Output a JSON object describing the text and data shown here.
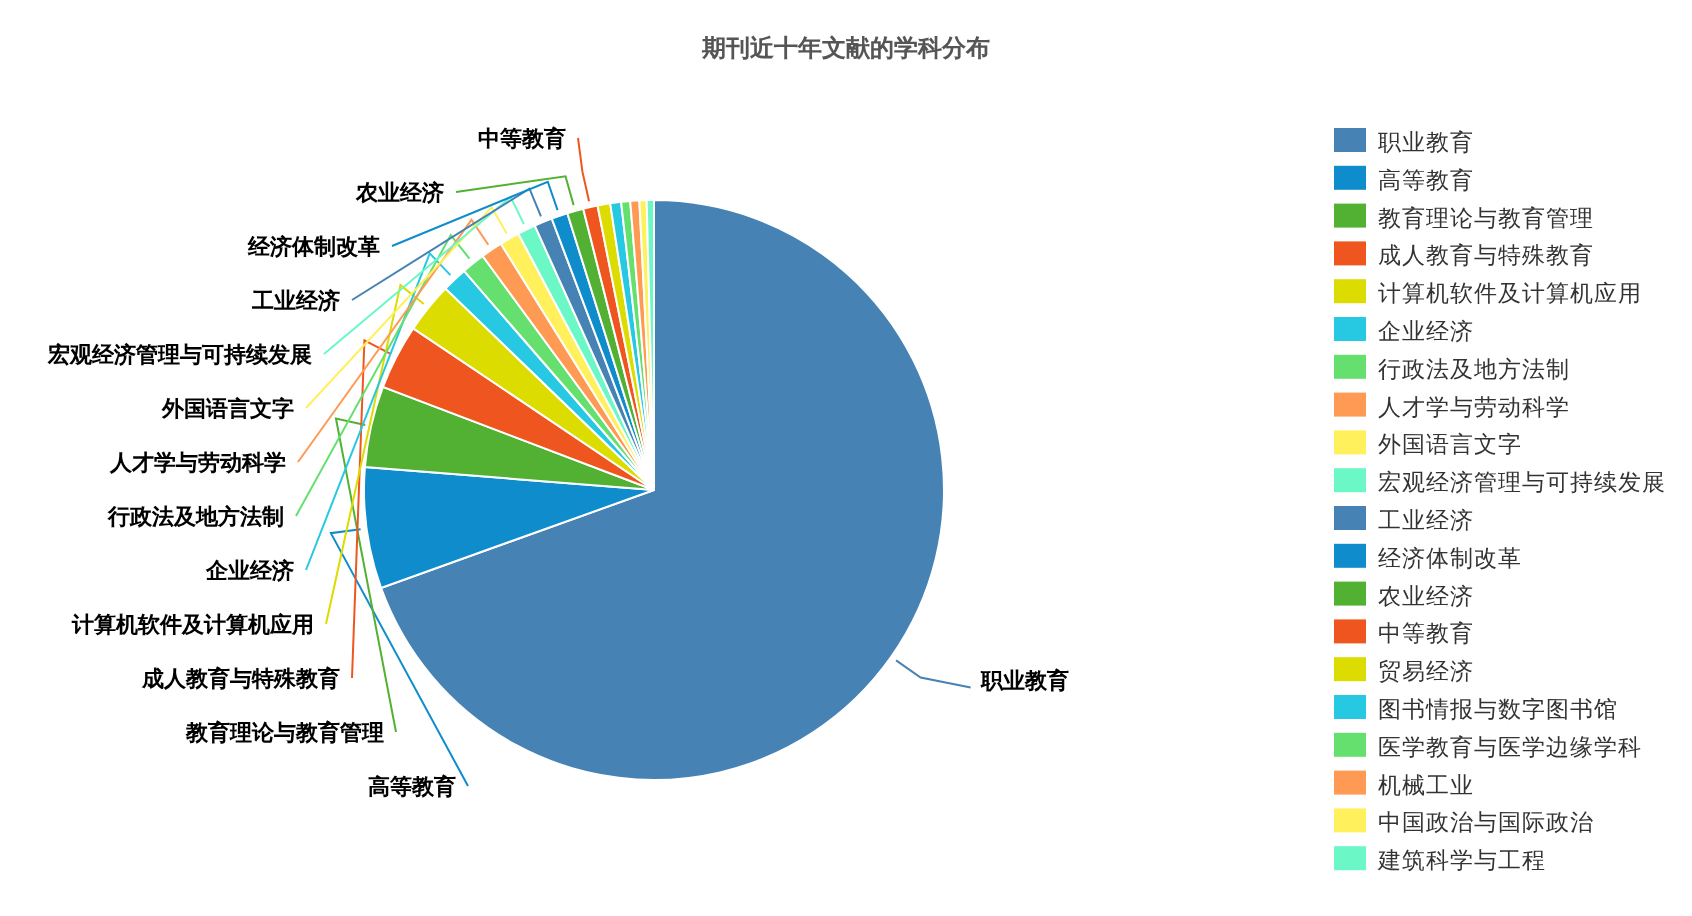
{
  "chart_data": {
    "type": "pie",
    "title": "期刊近十年文献的学科分布",
    "categories": [
      "职业教育",
      "高等教育",
      "教育理论与教育管理",
      "成人教育与特殊教育",
      "计算机软件及计算机应用",
      "企业经济",
      "行政法及地方法制",
      "人才学与劳动科学",
      "外国语言文字",
      "宏观经济管理与可持续发展",
      "工业经济",
      "经济体制改革",
      "农业经济",
      "中等教育",
      "贸易经济",
      "图书情报与数字图书馆",
      "医学教育与医学边缘学科",
      "机械工业",
      "中国政治与国际政治",
      "建筑科学与工程"
    ],
    "values": [
      69.1,
      6.7,
      4.5,
      3.6,
      2.8,
      1.4,
      1.3,
      1.2,
      1.1,
      1.0,
      1.0,
      0.9,
      0.9,
      0.8,
      0.7,
      0.6,
      0.5,
      0.5,
      0.4,
      0.4
    ],
    "colors": [
      "#4682b4",
      "#0e8ccb",
      "#52b132",
      "#ef561f",
      "#dcdc00",
      "#27c8e1",
      "#65e06e",
      "#ff9a55",
      "#fff05c",
      "#6cf8c6",
      "#4682b4",
      "#0e8ccb",
      "#52b132",
      "#ef561f",
      "#dcdc00",
      "#27c8e1",
      "#65e06e",
      "#ff9a55",
      "#fff05c",
      "#6cf8c6"
    ],
    "legend": "right"
  }
}
